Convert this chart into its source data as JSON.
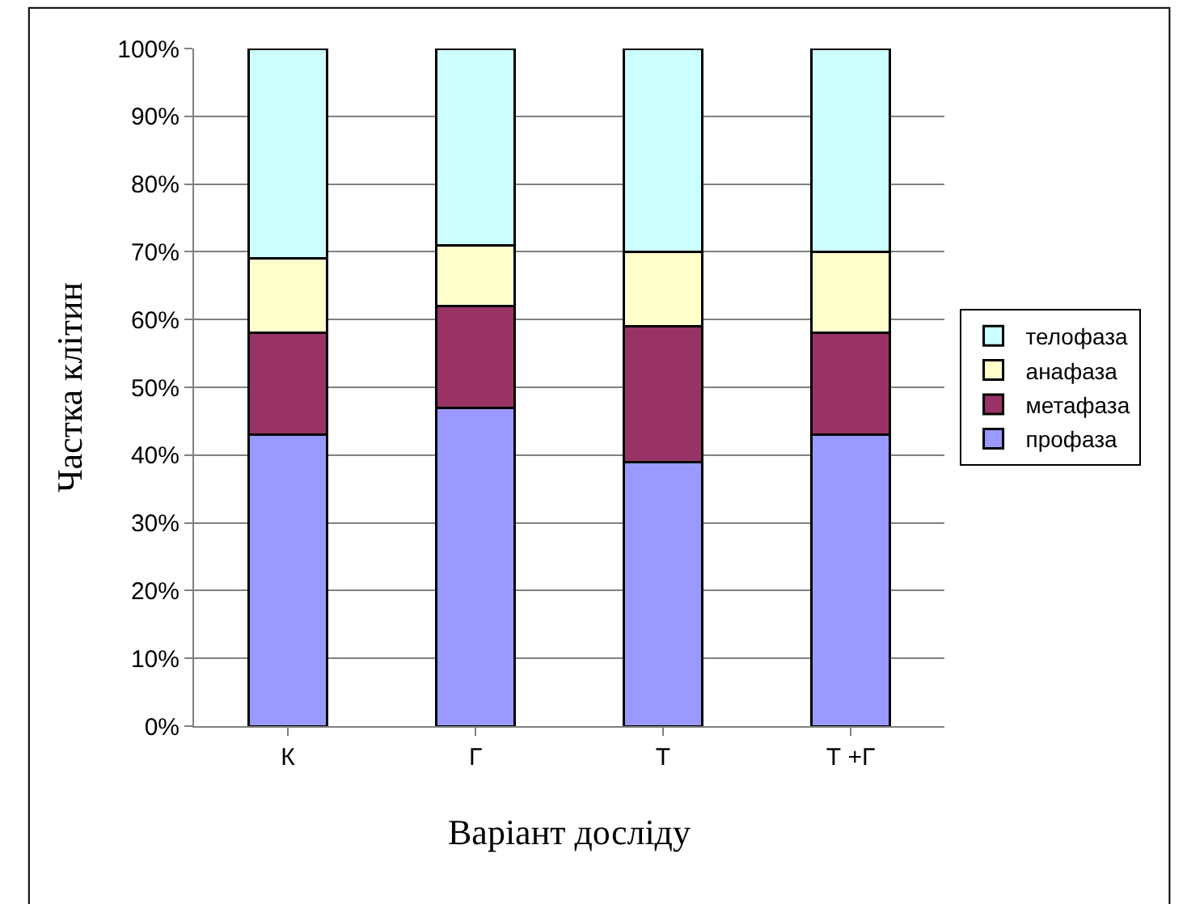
{
  "chart_data": {
    "type": "bar",
    "stacked": true,
    "xlabel": "Варіант досліду",
    "ylabel": "Частка клітин",
    "categories": [
      "К",
      "Г",
      "Т",
      "Т +Г"
    ],
    "series": [
      {
        "name": "профаза",
        "color": "#9999ff",
        "values": [
          43,
          47,
          39,
          43
        ]
      },
      {
        "name": "метафаза",
        "color": "#993366",
        "values": [
          15,
          15,
          20,
          15
        ]
      },
      {
        "name": "анафаза",
        "color": "#ffffcc",
        "values": [
          11,
          9,
          11,
          12
        ]
      },
      {
        "name": "телофаза",
        "color": "#ccffff",
        "values": [
          31,
          29,
          30,
          30
        ]
      }
    ],
    "ylim": [
      0,
      100
    ],
    "yticks": [
      {
        "value": 0,
        "label": "0%"
      },
      {
        "value": 10,
        "label": "10%"
      },
      {
        "value": 20,
        "label": "20%"
      },
      {
        "value": 30,
        "label": "30%"
      },
      {
        "value": 40,
        "label": "40%"
      },
      {
        "value": 50,
        "label": "50%"
      },
      {
        "value": 60,
        "label": "60%"
      },
      {
        "value": 70,
        "label": "70%"
      },
      {
        "value": 80,
        "label": "80%"
      },
      {
        "value": 90,
        "label": "90%"
      },
      {
        "value": 100,
        "label": "100%"
      }
    ],
    "grid": "y",
    "legend": "right"
  }
}
